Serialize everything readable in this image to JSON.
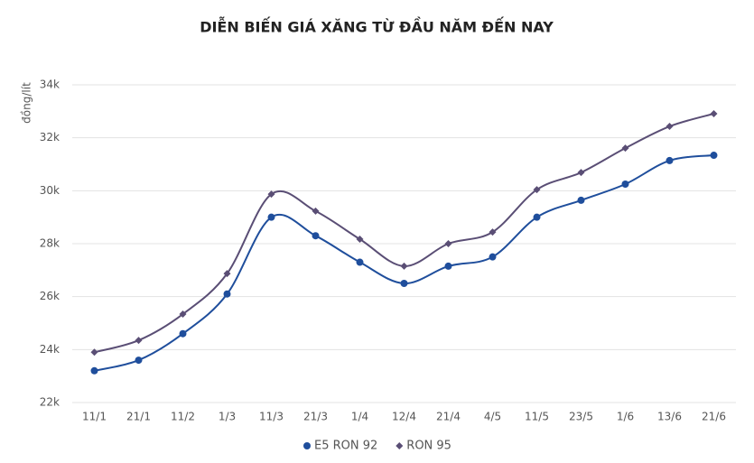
{
  "chart_data": {
    "type": "line",
    "title": "DIỄN BIẾN GIÁ XĂNG TỪ ĐẦU NĂM ĐẾN NAY",
    "y_label": "đồng/lít",
    "categories": [
      "11/1",
      "21/1",
      "11/2",
      "1/3",
      "11/3",
      "21/3",
      "1/4",
      "12/4",
      "21/4",
      "4/5",
      "11/5",
      "23/5",
      "1/6",
      "13/6",
      "21/6"
    ],
    "series": [
      {
        "name": "E5 RON 92",
        "color": "#1f4e9c",
        "marker": "circle",
        "values": [
          23200,
          23600,
          24600,
          26100,
          29000,
          28300,
          27300,
          26500,
          27150,
          27500,
          29000,
          29640,
          30250,
          31140,
          31340
        ]
      },
      {
        "name": "RON 95",
        "color": "#5a4e75",
        "marker": "diamond",
        "values": [
          23900,
          24350,
          25340,
          26870,
          29870,
          29230,
          28170,
          27150,
          28000,
          28440,
          30040,
          30690,
          31610,
          32430,
          32910
        ]
      }
    ],
    "ylim": [
      22000,
      34000
    ],
    "yticks": [
      {
        "value": 22000,
        "label": "22k"
      },
      {
        "value": 24000,
        "label": "24k"
      },
      {
        "value": 26000,
        "label": "26k"
      },
      {
        "value": 28000,
        "label": "28k"
      },
      {
        "value": 30000,
        "label": "30k"
      },
      {
        "value": 32000,
        "label": "32k"
      },
      {
        "value": 34000,
        "label": "34k"
      }
    ],
    "grid": true,
    "legend": "bottom"
  }
}
